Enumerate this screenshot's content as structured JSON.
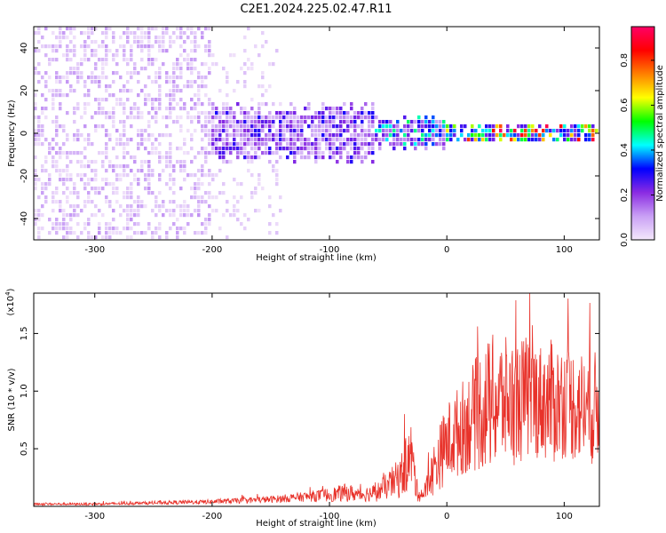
{
  "title": "C2E1.2024.225.02.47.R11",
  "chart_data": [
    {
      "type": "heatmap",
      "xlabel": "Height of straight line (km)",
      "ylabel": "Frequency (Hz)",
      "xlim": [
        -352,
        130
      ],
      "ylim": [
        -50,
        50
      ],
      "x_ticks": [
        -300,
        -200,
        -100,
        0,
        100
      ],
      "x_tick_labels": [
        "-300",
        "-200",
        "-100",
        "0",
        "100"
      ],
      "y_ticks": [
        -40,
        -20,
        0,
        20,
        40
      ],
      "y_tick_labels": [
        "-40",
        "-20",
        "0",
        "20",
        "40"
      ],
      "colorbar": {
        "label": "Normalized spectral amplitude",
        "range": [
          0,
          0.95
        ],
        "ticks": [
          0.0,
          0.2,
          0.4,
          0.6,
          0.8
        ],
        "tick_labels": [
          "0.0",
          "0.2",
          "0.4",
          "0.6",
          "0.8"
        ],
        "colors": [
          "#f4e8fb",
          "#c9a0f5",
          "#8a2be2",
          "#0000ff",
          "#00ffff",
          "#00ff00",
          "#ffff00",
          "#ff8000",
          "#ff0000",
          "#ff0066"
        ]
      },
      "features": [
        {
          "x_range": [
            -352,
            -200
          ],
          "freq_range": [
            -50,
            50
          ],
          "amplitude_range": [
            0.0,
            0.12
          ],
          "pattern": "broadband noise"
        },
        {
          "x_range": [
            -200,
            -140
          ],
          "freq_range": [
            -50,
            50
          ],
          "amplitude_range": [
            0.0,
            0.06
          ],
          "pattern": "sparse broadband noise"
        },
        {
          "x_range": [
            -200,
            -60
          ],
          "freq_center": 0,
          "freq_halfwidth": 12,
          "amplitude_range": [
            0.05,
            0.3
          ],
          "pattern": "signal band"
        },
        {
          "x_range": [
            -60,
            0
          ],
          "freq_center": 0,
          "freq_halfwidth": 7,
          "amplitude_range": [
            0.1,
            0.5
          ],
          "pattern": "signal band"
        },
        {
          "x_range": [
            0,
            130
          ],
          "freq_center": 0,
          "freq_halfwidth": 4,
          "amplitude_range": [
            0.2,
            0.95
          ],
          "pattern": "narrow signal band"
        }
      ]
    },
    {
      "type": "line",
      "xlabel": "Height of straight line (km)",
      "ylabel": "SNR (10 * v/v)",
      "y_multiplier": "(x10",
      "y_multiplier_exp": "4",
      "y_multiplier_close": ")",
      "xlim": [
        -352,
        130
      ],
      "ylim": [
        0,
        1.85
      ],
      "x_ticks": [
        -300,
        -200,
        -100,
        0,
        100
      ],
      "x_tick_labels": [
        "-300",
        "-200",
        "-100",
        "0",
        "100"
      ],
      "y_ticks": [
        0.5,
        1.0,
        1.5
      ],
      "y_tick_labels": [
        "0.5",
        "1.0",
        "1.5"
      ],
      "line_color": "#e8322a",
      "series": [
        {
          "name": "SNR",
          "x": [
            -352,
            -300,
            -250,
            -200,
            -175,
            -150,
            -125,
            -100,
            -85,
            -75,
            -60,
            -50,
            -40,
            -35,
            -30,
            -28,
            -25,
            -20,
            -15,
            -10,
            -5,
            0,
            10,
            20,
            30,
            40,
            50,
            60,
            70,
            80,
            90,
            100,
            110,
            120,
            130
          ],
          "mean": [
            0.02,
            0.02,
            0.03,
            0.04,
            0.05,
            0.06,
            0.08,
            0.1,
            0.12,
            0.1,
            0.12,
            0.18,
            0.25,
            0.35,
            0.45,
            0.3,
            0.12,
            0.1,
            0.22,
            0.35,
            0.45,
            0.55,
            0.65,
            0.75,
            0.85,
            0.9,
            0.92,
            0.9,
            0.95,
            0.92,
            0.9,
            0.92,
            0.88,
            0.85,
            0.85
          ],
          "amp": [
            0.01,
            0.01,
            0.015,
            0.02,
            0.025,
            0.03,
            0.04,
            0.06,
            0.08,
            0.06,
            0.08,
            0.12,
            0.18,
            0.25,
            0.3,
            0.2,
            0.08,
            0.06,
            0.15,
            0.25,
            0.3,
            0.35,
            0.4,
            0.45,
            0.55,
            0.6,
            0.55,
            0.55,
            0.55,
            0.5,
            0.55,
            0.5,
            0.5,
            0.5,
            0.5
          ],
          "peak_max": 1.85
        }
      ]
    }
  ]
}
